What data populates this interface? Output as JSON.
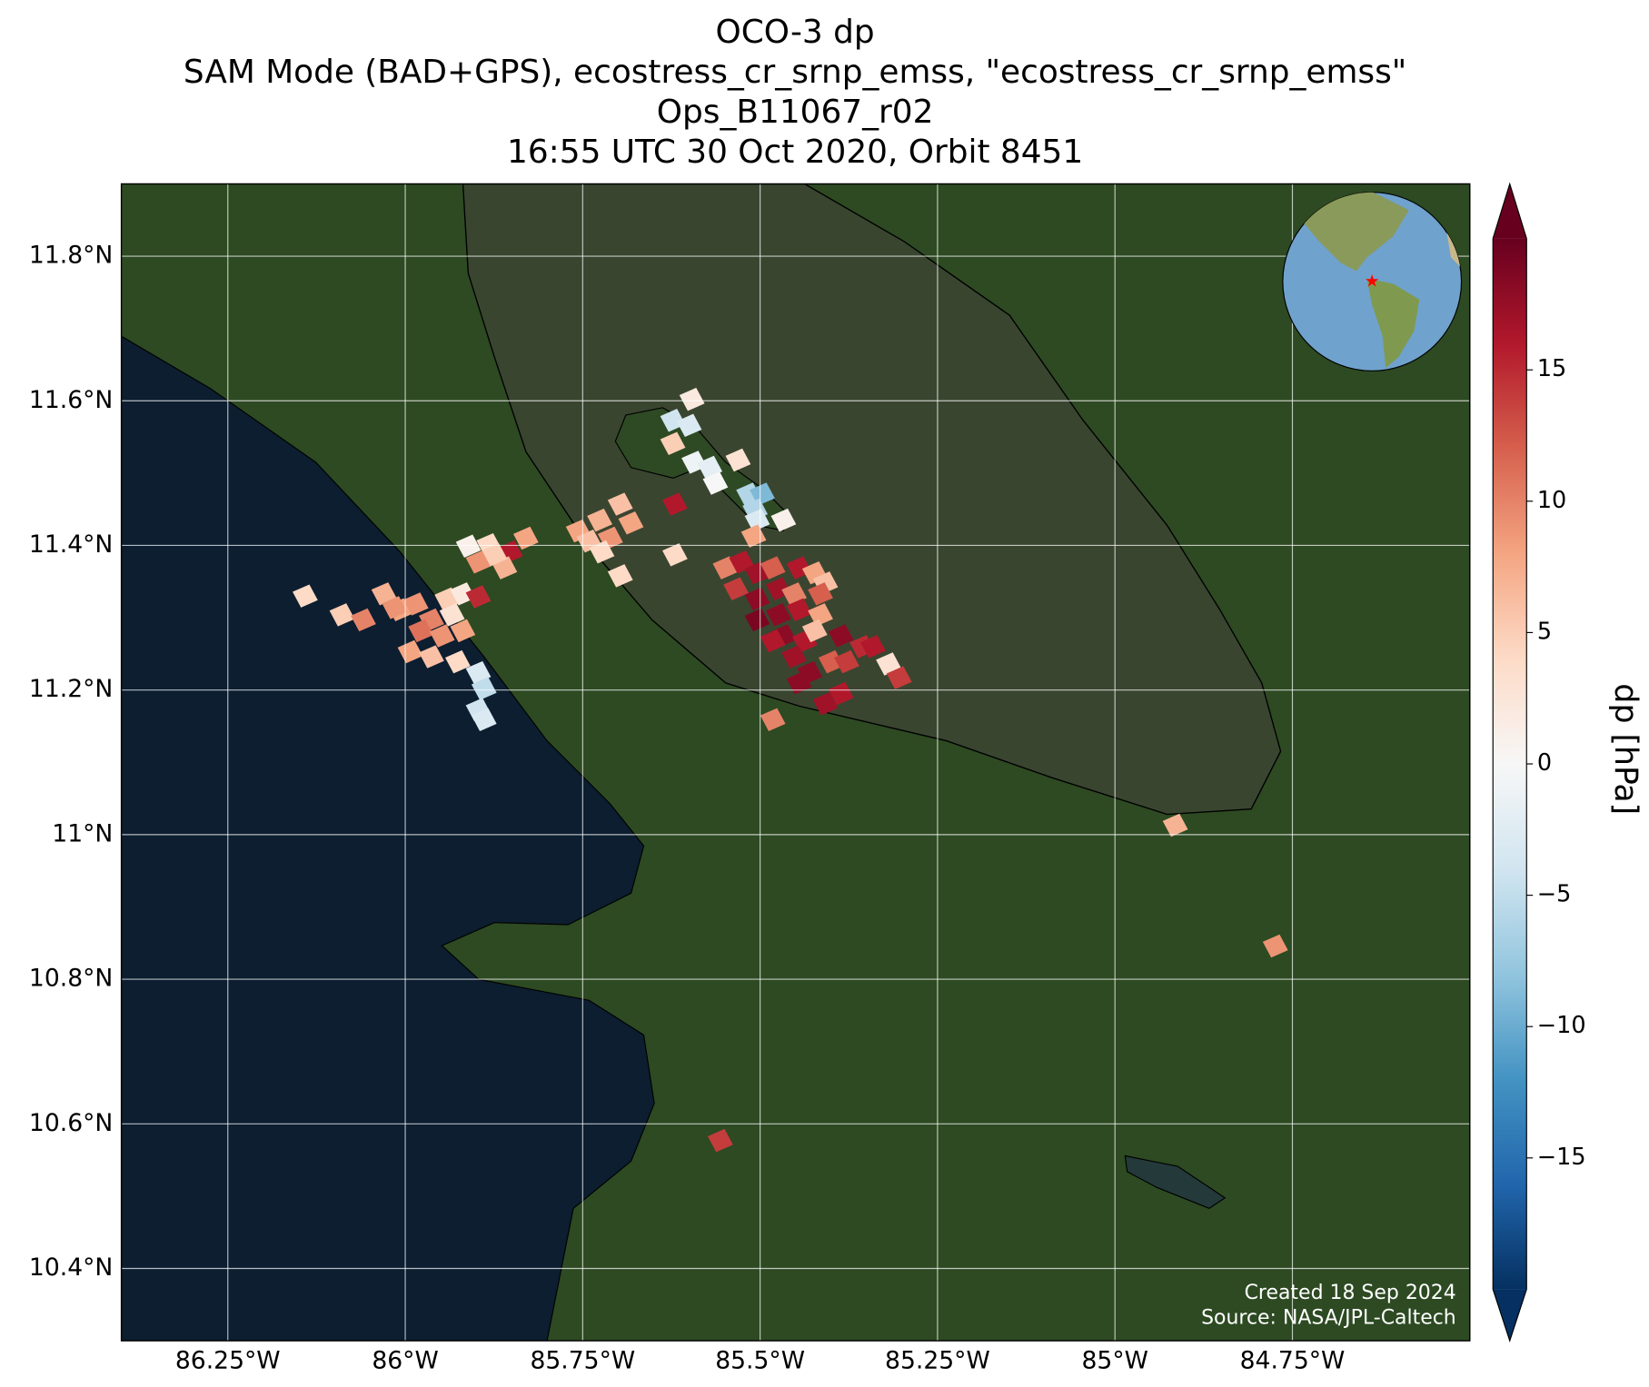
{
  "chart_data": {
    "type": "map",
    "title": [
      "OCO-3 dp",
      "SAM Mode (BAD+GPS), ecostress_cr_srnp_emss, \"ecostress_cr_srnp_emss\"",
      "Ops_B11067_r02",
      "16:55 UTC 30 Oct 2020, Orbit 8451"
    ],
    "xlim": [
      -86.4,
      -84.5
    ],
    "ylim": [
      10.3,
      11.9
    ],
    "xticks": [
      {
        "value": -86.25,
        "label": "86.25°W"
      },
      {
        "value": -86,
        "label": "86°W"
      },
      {
        "value": -85.75,
        "label": "85.75°W"
      },
      {
        "value": -85.5,
        "label": "85.5°W"
      },
      {
        "value": -85.25,
        "label": "85.25°W"
      },
      {
        "value": -85,
        "label": "85°W"
      },
      {
        "value": -84.75,
        "label": "84.75°W"
      }
    ],
    "yticks": [
      {
        "value": 10.4,
        "label": "10.4°N"
      },
      {
        "value": 10.6,
        "label": "10.6°N"
      },
      {
        "value": 10.8,
        "label": "10.8°N"
      },
      {
        "value": 11,
        "label": "11°N"
      },
      {
        "value": 11.2,
        "label": "11.2°N"
      },
      {
        "value": 11.4,
        "label": "11.4°N"
      },
      {
        "value": 11.6,
        "label": "11.6°N"
      },
      {
        "value": 11.8,
        "label": "11.8°N"
      }
    ],
    "grid": true,
    "colormap": [
      "#053061",
      "#2166ac",
      "#4393c3",
      "#92c5de",
      "#d1e5f0",
      "#f7f7f7",
      "#fddbc7",
      "#f4a582",
      "#d6604d",
      "#b2182b",
      "#67001f"
    ],
    "clim": [
      -20,
      20
    ],
    "colorbar_label": "dp [hPa]",
    "colorbar_ticks": [
      {
        "value": -15,
        "label": "−15"
      },
      {
        "value": -10,
        "label": "−10"
      },
      {
        "value": -5,
        "label": "−5"
      },
      0,
      5,
      10,
      15
    ],
    "site": {
      "lon": -85.615,
      "lat": 10.842,
      "color": "#ff0000"
    },
    "footprints": {
      "lon": [
        -86.141,
        -86.089,
        -86.059,
        -86.03,
        -86.008,
        -85.985,
        -85.963,
        -85.941,
        -85.919,
        -85.897,
        -85.978,
        -85.948,
        -85.919,
        -85.993,
        -85.963,
        -85.926,
        -85.897,
        -85.889,
        -85.897,
        -85.889,
        -86.015,
        -85.934,
        -85.911,
        -85.882,
        -85.852,
        -85.83,
        -85.897,
        -85.86,
        -85.874,
        -85.756,
        -85.726,
        -85.697,
        -85.682,
        -85.711,
        -85.741,
        -85.723,
        -85.697,
        -85.62,
        -85.62,
        -85.596,
        -85.623,
        -85.6,
        -85.623,
        -85.593,
        -85.571,
        -85.563,
        -85.531,
        -85.516,
        -85.497,
        -85.507,
        -85.504,
        -85.467,
        -85.509,
        -85.549,
        -85.526,
        -85.504,
        -85.482,
        -85.445,
        -85.423,
        -85.408,
        -85.534,
        -85.504,
        -85.474,
        -85.452,
        -85.415,
        -85.504,
        -85.474,
        -85.445,
        -85.415,
        -85.386,
        -85.467,
        -85.437,
        -85.482,
        -85.423,
        -85.452,
        -85.43,
        -85.4,
        -85.378,
        -85.356,
        -85.341,
        -85.319,
        -85.304,
        -85.386,
        -85.482,
        -85.445,
        -85.408,
        -84.915,
        -84.774,
        -85.556
      ],
      "lat": [
        11.33,
        11.304,
        11.297,
        11.333,
        11.311,
        11.319,
        11.297,
        11.326,
        11.333,
        11.329,
        11.282,
        11.275,
        11.282,
        11.253,
        11.246,
        11.239,
        11.224,
        11.202,
        11.173,
        11.159,
        11.314,
        11.304,
        11.399,
        11.401,
        11.391,
        11.41,
        11.377,
        11.369,
        11.387,
        11.42,
        11.435,
        11.457,
        11.431,
        11.41,
        11.406,
        11.391,
        11.358,
        11.457,
        11.387,
        11.602,
        11.573,
        11.566,
        11.541,
        11.515,
        11.508,
        11.486,
        11.518,
        11.471,
        11.471,
        11.449,
        11.435,
        11.435,
        11.413,
        11.369,
        11.377,
        11.362,
        11.369,
        11.369,
        11.362,
        11.348,
        11.34,
        11.326,
        11.34,
        11.333,
        11.333,
        11.297,
        11.304,
        11.311,
        11.304,
        11.275,
        11.275,
        11.268,
        11.268,
        11.282,
        11.246,
        11.224,
        11.239,
        11.239,
        11.26,
        11.26,
        11.236,
        11.217,
        11.195,
        11.159,
        11.21,
        11.181,
        11.013,
        10.846,
        10.577
      ],
      "dp": [
        4,
        5,
        10,
        7,
        8,
        9,
        10,
        5,
        2,
        15,
        11,
        9,
        8,
        8,
        6,
        4,
        -3,
        -5,
        -4,
        -3,
        9,
        3,
        1,
        4,
        16,
        8,
        9,
        7,
        5,
        8,
        7,
        6,
        8,
        9,
        6,
        4,
        4,
        16,
        4,
        2,
        -4,
        -3,
        5,
        -1,
        -2,
        0,
        3,
        -6,
        -9,
        -6,
        -3,
        1,
        8,
        10,
        16,
        17,
        12,
        16,
        8,
        6,
        14,
        18,
        17,
        10,
        12,
        19,
        18,
        16,
        8,
        18,
        18,
        16,
        16,
        6,
        17,
        18,
        12,
        14,
        15,
        16,
        3,
        14,
        16,
        10,
        18,
        17,
        7,
        9,
        14
      ]
    },
    "credits": [
      "Created 18 Sep 2024",
      "Source: NASA/JPL-Caltech"
    ]
  }
}
